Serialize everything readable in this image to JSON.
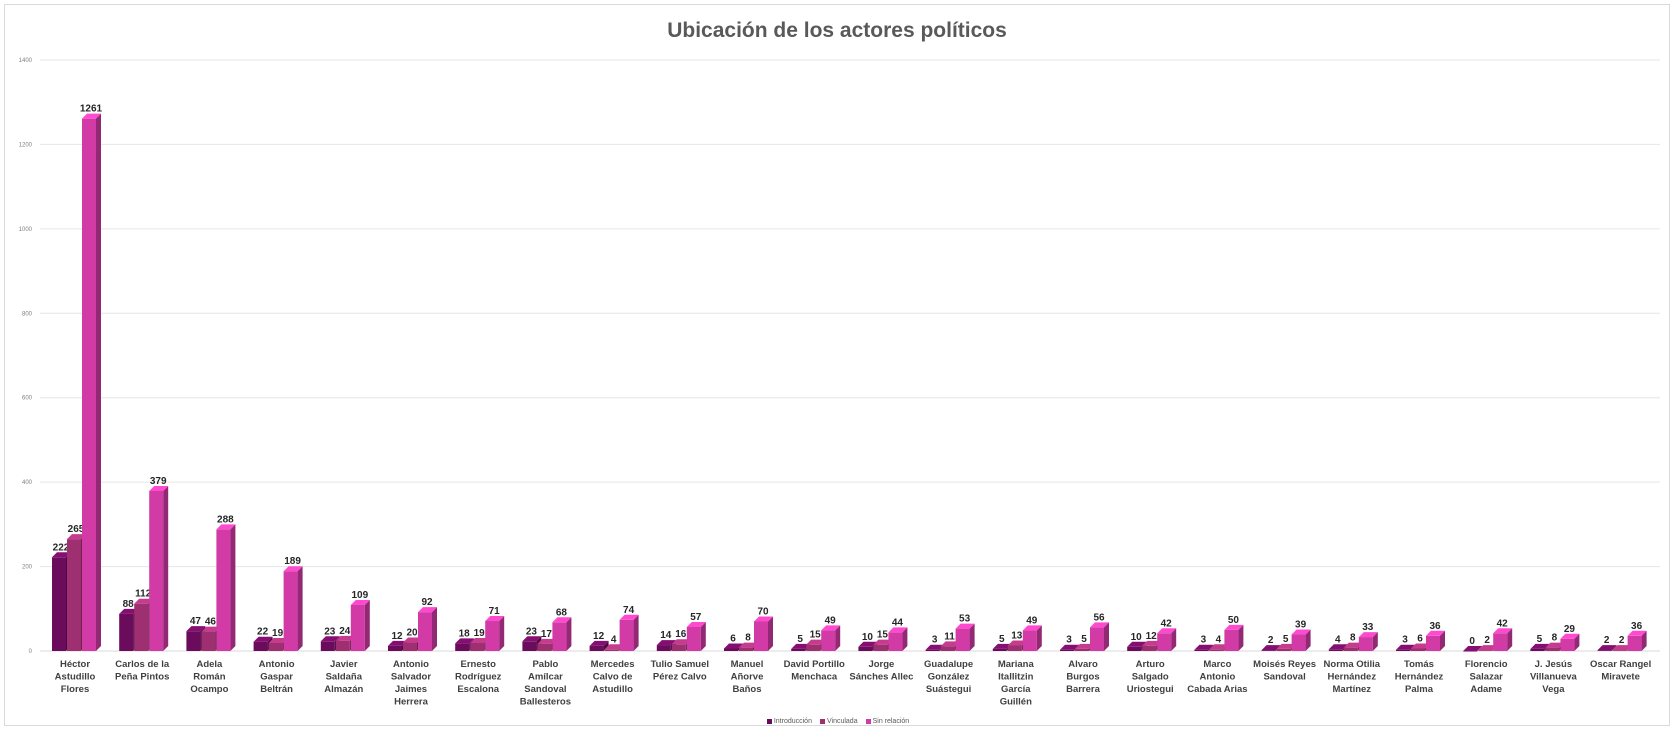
{
  "chart_data": {
    "type": "bar",
    "title": "Ubicación de los actores políticos",
    "xlabel": "",
    "ylabel": "",
    "ylim": [
      0,
      1400
    ],
    "yticks": [
      0,
      200,
      400,
      600,
      800,
      1000,
      1200,
      1400
    ],
    "grid": true,
    "legend_position": "bottom",
    "categories": [
      "Héctor Astudillo Flores",
      "Carlos de la Peña Pintos",
      "Adela Román Ocampo",
      "Antonio Gaspar Beltrán",
      "Javier Saldaña Almazán",
      "Antonio Salvador Jaimes Herrera",
      "Ernesto Rodríguez Escalona",
      "Pablo Amílcar Sandoval Ballesteros",
      "Mercedes Calvo de Astudillo",
      "Tulio Samuel Pérez Calvo",
      "Manuel Añorve Baños",
      "David Portillo Menchaca",
      "Jorge Sánches Allec",
      "Guadalupe González Suástegui",
      "Mariana Itallitzin García Guillén",
      "Alvaro Burgos Barrera",
      "Arturo Salgado Uriostegui",
      "Marco Antonio Cabada Arias",
      "Moisés Reyes Sandoval",
      "Norma Otilia Hernández Martínez",
      "Tomás Hernández Palma",
      "Florencio Salazar Adame",
      "J. Jesús Villanueva Vega",
      "Oscar Rangel Miravete"
    ],
    "category_lines": [
      [
        "Héctor",
        "Astudillo",
        "Flores"
      ],
      [
        "Carlos de la",
        "Peña Pintos"
      ],
      [
        "Adela",
        "Román",
        "Ocampo"
      ],
      [
        "Antonio",
        "Gaspar",
        "Beltrán"
      ],
      [
        "Javier",
        "Saldaña",
        "Almazán"
      ],
      [
        "Antonio",
        "Salvador",
        "Jaimes",
        "Herrera"
      ],
      [
        "Ernesto",
        "Rodríguez",
        "Escalona"
      ],
      [
        "Pablo",
        "Amílcar",
        "Sandoval",
        "Ballesteros"
      ],
      [
        "Mercedes",
        "Calvo de",
        "Astudillo"
      ],
      [
        "Tulio Samuel",
        "Pérez Calvo"
      ],
      [
        "Manuel",
        "Añorve",
        "Baños"
      ],
      [
        "David Portillo",
        "Menchaca"
      ],
      [
        "Jorge",
        "Sánches Allec"
      ],
      [
        "Guadalupe",
        "González",
        "Suástegui"
      ],
      [
        "Mariana",
        "Itallitzin",
        "García",
        "Guillén"
      ],
      [
        "Alvaro",
        "Burgos",
        "Barrera"
      ],
      [
        "Arturo",
        "Salgado",
        "Uriostegui"
      ],
      [
        "Marco",
        "Antonio",
        "Cabada Arias"
      ],
      [
        "Moisés Reyes",
        "Sandoval"
      ],
      [
        "Norma Otilia",
        "Hernández",
        "Martínez"
      ],
      [
        "Tomás",
        "Hernández",
        "Palma"
      ],
      [
        "Florencio",
        "Salazar",
        "Adame"
      ],
      [
        "J. Jesús",
        "Villanueva",
        "Vega"
      ],
      [
        "Oscar Rangel",
        "Miravete"
      ]
    ],
    "series": [
      {
        "name": "Introducción",
        "color": "#6b0b5c",
        "values": [
          222,
          88,
          47,
          22,
          23,
          12,
          18,
          23,
          12,
          14,
          6,
          5,
          10,
          3,
          5,
          3,
          10,
          3,
          2,
          4,
          3,
          0,
          5,
          2
        ]
      },
      {
        "name": "Vinculada",
        "color": "#9e2f71",
        "values": [
          265,
          112,
          46,
          19,
          24,
          20,
          19,
          17,
          4,
          16,
          8,
          15,
          15,
          11,
          13,
          5,
          12,
          4,
          5,
          8,
          6,
          2,
          8,
          2
        ]
      },
      {
        "name": "Sin relación",
        "color": "#d23ba6",
        "values": [
          1261,
          379,
          288,
          189,
          109,
          92,
          71,
          68,
          74,
          57,
          70,
          49,
          44,
          53,
          49,
          56,
          42,
          50,
          39,
          33,
          36,
          42,
          29,
          36
        ]
      }
    ]
  }
}
